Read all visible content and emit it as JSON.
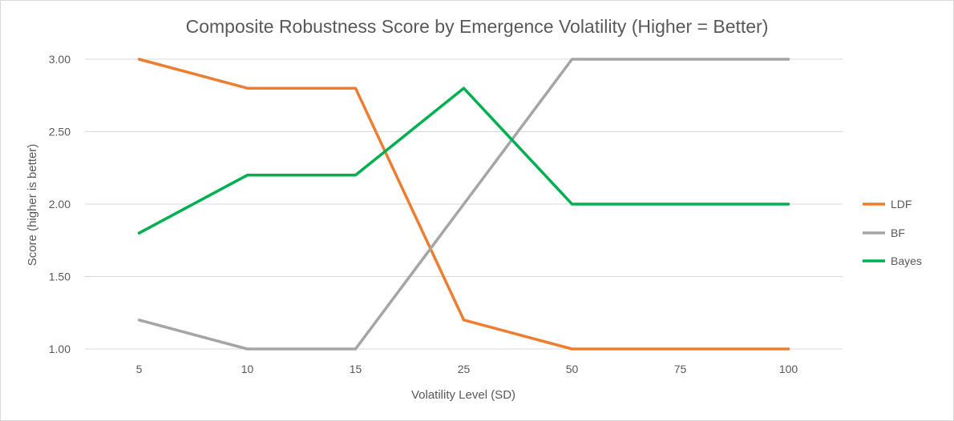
{
  "chart_data": {
    "type": "line",
    "title": "Composite Robustness Score by Emergence Volatility (Higher = Better)",
    "xlabel": "Volatility Level (SD)",
    "ylabel": "Score (higher is better)",
    "categories": [
      "5",
      "10",
      "15",
      "25",
      "50",
      "75",
      "100"
    ],
    "ylim": [
      1.0,
      3.0
    ],
    "yticks": [
      "1.00",
      "1.50",
      "2.00",
      "2.50",
      "3.00"
    ],
    "grid": true,
    "legend_position": "right",
    "series": [
      {
        "name": "LDF",
        "color": "#ed7d31",
        "values": [
          3.0,
          2.8,
          2.8,
          1.2,
          1.0,
          1.0,
          1.0
        ]
      },
      {
        "name": "BF",
        "color": "#a5a5a5",
        "values": [
          1.2,
          1.0,
          1.0,
          2.0,
          3.0,
          3.0,
          3.0
        ]
      },
      {
        "name": "Bayes",
        "color": "#00b050",
        "values": [
          1.8,
          2.2,
          2.2,
          2.8,
          2.0,
          2.0,
          2.0
        ]
      }
    ]
  }
}
